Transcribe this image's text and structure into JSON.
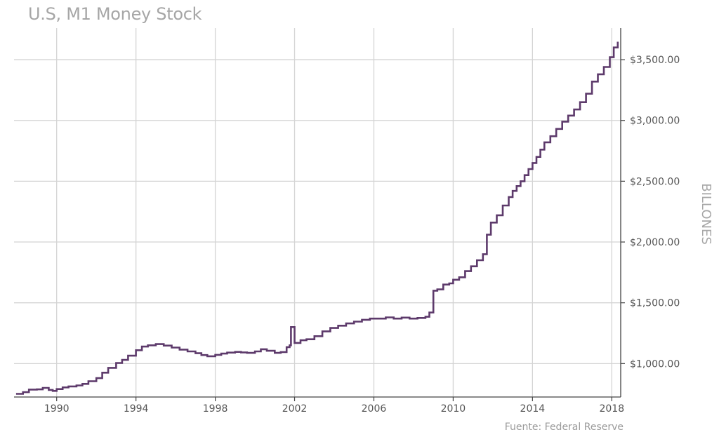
{
  "chart_data": {
    "type": "line",
    "title": "U.S, M1 Money Stock",
    "ylabel": "BILLONES",
    "xlabel": "",
    "source": "Fuente: Federal Reserve",
    "line_color": "#5d3a6b",
    "grid_color": "#d4d4d4",
    "xlim": [
      1987.85,
      2018.45
    ],
    "ylim": [
      725,
      3760
    ],
    "x_ticks": [
      1990,
      1994,
      1998,
      2002,
      2006,
      2010,
      2014,
      2018
    ],
    "x_tick_labels": [
      "1990",
      "1994",
      "1998",
      "2002",
      "2006",
      "2010",
      "2014",
      "2018"
    ],
    "y_ticks": [
      1000,
      1500,
      2000,
      2500,
      3000,
      3500
    ],
    "y_tick_labels": [
      "$1,000.00",
      "$1,500.00",
      "$2,000.00",
      "$2,500.00",
      "$3,000.00",
      "$3,500.00"
    ],
    "series": [
      {
        "name": "M1",
        "x": [
          1988.0,
          1988.3,
          1988.6,
          1989.0,
          1989.3,
          1989.6,
          1989.8,
          1990.0,
          1990.3,
          1990.6,
          1991.0,
          1991.3,
          1991.6,
          1992.0,
          1992.3,
          1992.6,
          1993.0,
          1993.3,
          1993.6,
          1994.0,
          1994.3,
          1994.6,
          1995.0,
          1995.4,
          1995.8,
          1996.2,
          1996.6,
          1997.0,
          1997.3,
          1997.6,
          1998.0,
          1998.3,
          1998.6,
          1999.0,
          1999.3,
          1999.6,
          2000.0,
          2000.3,
          2000.6,
          2001.0,
          2001.3,
          2001.6,
          2001.75,
          2001.82,
          2002.0,
          2002.3,
          2002.6,
          2003.0,
          2003.4,
          2003.8,
          2004.2,
          2004.6,
          2005.0,
          2005.4,
          2005.8,
          2006.2,
          2006.6,
          2007.0,
          2007.4,
          2007.8,
          2008.2,
          2008.6,
          2008.8,
          2009.0,
          2009.2,
          2009.5,
          2009.8,
          2010.0,
          2010.3,
          2010.6,
          2010.9,
          2011.2,
          2011.5,
          2011.7,
          2011.9,
          2012.2,
          2012.5,
          2012.8,
          2013.0,
          2013.2,
          2013.4,
          2013.6,
          2013.8,
          2014.0,
          2014.2,
          2014.4,
          2014.6,
          2014.9,
          2015.2,
          2015.5,
          2015.8,
          2016.1,
          2016.4,
          2016.7,
          2017.0,
          2017.3,
          2017.6,
          2017.9,
          2018.1,
          2018.3
        ],
        "values": [
          751,
          765,
          786,
          788,
          800,
          783,
          775,
          790,
          804,
          812,
          820,
          833,
          855,
          880,
          925,
          965,
          1005,
          1030,
          1065,
          1110,
          1140,
          1150,
          1160,
          1148,
          1132,
          1115,
          1100,
          1085,
          1070,
          1060,
          1072,
          1082,
          1090,
          1096,
          1092,
          1088,
          1100,
          1118,
          1105,
          1088,
          1095,
          1135,
          1150,
          1300,
          1170,
          1192,
          1200,
          1225,
          1265,
          1293,
          1312,
          1330,
          1345,
          1360,
          1370,
          1370,
          1380,
          1370,
          1378,
          1370,
          1375,
          1385,
          1420,
          1600,
          1610,
          1650,
          1660,
          1690,
          1710,
          1760,
          1800,
          1850,
          1900,
          2060,
          2160,
          2220,
          2300,
          2370,
          2420,
          2460,
          2500,
          2550,
          2600,
          2650,
          2700,
          2760,
          2820,
          2870,
          2930,
          2990,
          3040,
          3090,
          3150,
          3220,
          3320,
          3380,
          3440,
          3520,
          3600,
          3640
        ]
      }
    ]
  }
}
